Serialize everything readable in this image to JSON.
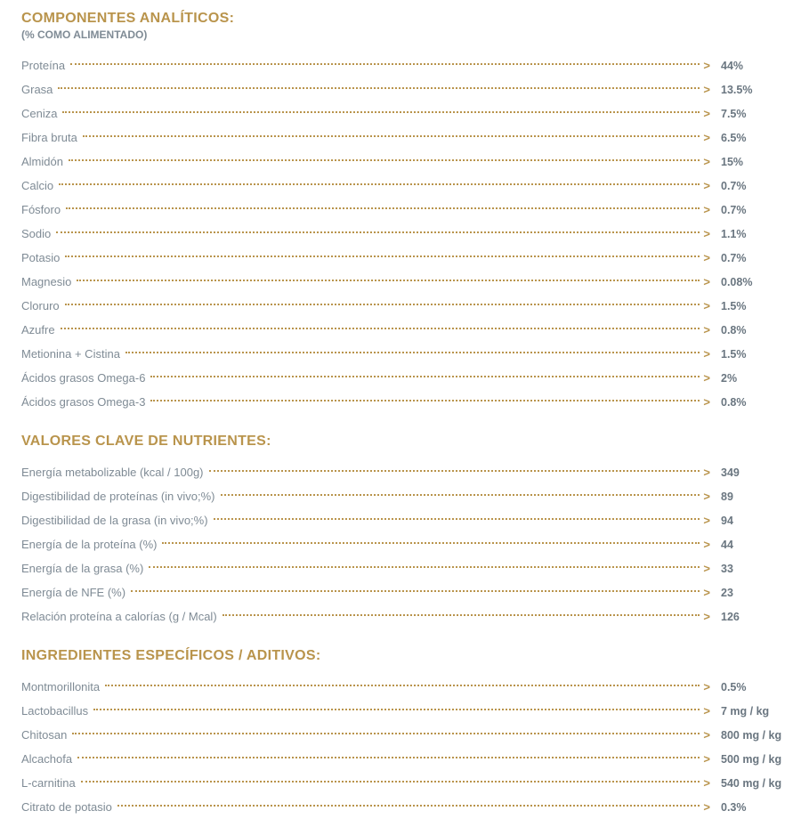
{
  "colors": {
    "gold": "#b9944c",
    "gray": "#7f8b95",
    "gray_dark": "#6a7680"
  },
  "sections": [
    {
      "title": "COMPONENTES ANALÍTICOS:",
      "subtitle": "(% COMO ALIMENTADO)",
      "rows": [
        {
          "label": "Proteína",
          "value": "44%"
        },
        {
          "label": "Grasa",
          "value": "13.5%"
        },
        {
          "label": "Ceniza",
          "value": "7.5%"
        },
        {
          "label": "Fibra bruta",
          "value": "6.5%"
        },
        {
          "label": "Almidón",
          "value": "15%"
        },
        {
          "label": "Calcio",
          "value": "0.7%"
        },
        {
          "label": "Fósforo",
          "value": "0.7%"
        },
        {
          "label": "Sodio",
          "value": "1.1%"
        },
        {
          "label": "Potasio",
          "value": "0.7%"
        },
        {
          "label": "Magnesio",
          "value": "0.08%"
        },
        {
          "label": "Cloruro",
          "value": "1.5%"
        },
        {
          "label": "Azufre",
          "value": "0.8%"
        },
        {
          "label": "Metionina + Cistina",
          "value": "1.5%"
        },
        {
          "label": "Ácidos grasos Omega-6",
          "value": "2%"
        },
        {
          "label": "Ácidos grasos Omega-3",
          "value": "0.8%"
        }
      ]
    },
    {
      "title": "VALORES CLAVE DE NUTRIENTES:",
      "rows": [
        {
          "label": "Energía metabolizable (kcal / 100g)",
          "value": "349"
        },
        {
          "label": "Digestibilidad de proteínas (in vivo;%)",
          "value": "89"
        },
        {
          "label": "Digestibilidad de la grasa (in vivo;%)",
          "value": "94"
        },
        {
          "label": "Energía de la proteína (%)",
          "value": "44"
        },
        {
          "label": "Energía de la grasa (%)",
          "value": "33"
        },
        {
          "label": "Energía de NFE (%)",
          "value": "23"
        },
        {
          "label": "Relación proteína a calorías (g / Mcal)",
          "value": "126"
        }
      ]
    },
    {
      "title": "INGREDIENTES ESPECÍFICOS / ADITIVOS:",
      "rows": [
        {
          "label": "Montmorillonita",
          "value": "0.5%"
        },
        {
          "label": "Lactobacillus",
          "value": "7 mg / kg"
        },
        {
          "label": "Chitosan",
          "value": "800 mg / kg"
        },
        {
          "label": "Alcachofa",
          "value": "500 mg / kg"
        },
        {
          "label": "L-carnitina",
          "value": "540 mg / kg"
        },
        {
          "label": "Citrato de potasio",
          "value": "0.3%"
        }
      ]
    }
  ]
}
